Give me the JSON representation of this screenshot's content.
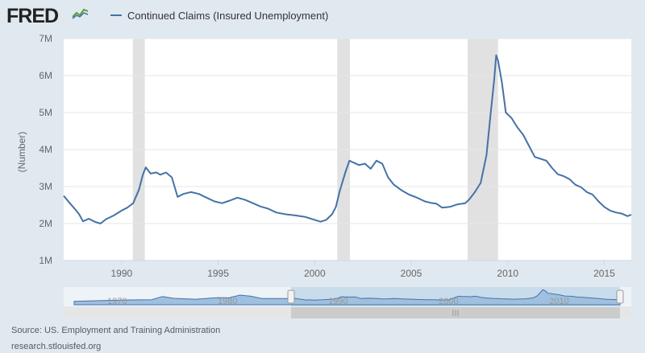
{
  "header": {
    "logo": "FRED",
    "legend_label": "Continued Claims (Insured Unemployment)"
  },
  "footer": {
    "source": "Source: US. Employment and Training Administration",
    "site": "research.stlouisfed.org"
  },
  "colors": {
    "series": "#4572a7",
    "recession": "#e1e1e1",
    "navigator_fill": "#9fc0de",
    "navigator_bg": "#c9dcec"
  },
  "chart_data": {
    "type": "line",
    "title": "",
    "xlabel": "",
    "ylabel": "(Number)",
    "xlim": [
      1987.0,
      2016.4
    ],
    "ylim": [
      1000000,
      7000000
    ],
    "yticks": [
      1000000,
      2000000,
      3000000,
      4000000,
      5000000,
      6000000,
      7000000
    ],
    "ytick_labels": [
      "1M",
      "2M",
      "3M",
      "4M",
      "5M",
      "6M",
      "7M"
    ],
    "xticks": [
      1990,
      1995,
      2000,
      2005,
      2010,
      2015
    ],
    "xtick_labels": [
      "1990",
      "1995",
      "2000",
      "2005",
      "2010",
      "2015"
    ],
    "grid": "horizontal",
    "legend": "top-left",
    "recessions": [
      [
        1990.58,
        1991.2
      ],
      [
        2001.17,
        2001.83
      ],
      [
        2007.92,
        2009.5
      ]
    ],
    "series": [
      {
        "name": "Continued Claims (Insured Unemployment)",
        "x": [
          1987.0,
          1987.3,
          1987.6,
          1987.8,
          1988.0,
          1988.3,
          1988.6,
          1988.9,
          1989.2,
          1989.6,
          1990.0,
          1990.3,
          1990.6,
          1990.9,
          1991.1,
          1991.25,
          1991.5,
          1991.8,
          1992.0,
          1992.3,
          1992.6,
          1992.9,
          1993.2,
          1993.6,
          1994.0,
          1994.4,
          1994.8,
          1995.2,
          1995.6,
          1996.0,
          1996.4,
          1996.8,
          1997.2,
          1997.6,
          1998.0,
          1998.5,
          1999.0,
          1999.5,
          2000.0,
          2000.3,
          2000.6,
          2000.9,
          2001.1,
          2001.3,
          2001.6,
          2001.8,
          2002.0,
          2002.3,
          2002.6,
          2002.9,
          2003.2,
          2003.5,
          2003.8,
          2004.1,
          2004.5,
          2004.9,
          2005.3,
          2005.7,
          2006.0,
          2006.3,
          2006.6,
          2007.0,
          2007.4,
          2007.8,
          2008.0,
          2008.3,
          2008.6,
          2008.9,
          2009.1,
          2009.3,
          2009.4,
          2009.5,
          2009.7,
          2009.9,
          2010.2,
          2010.5,
          2010.8,
          2011.1,
          2011.4,
          2011.7,
          2012.0,
          2012.3,
          2012.6,
          2012.9,
          2013.2,
          2013.5,
          2013.8,
          2014.1,
          2014.4,
          2014.7,
          2015.0,
          2015.3,
          2015.6,
          2015.9,
          2016.2,
          2016.4
        ],
        "values": [
          2750000,
          2560000,
          2380000,
          2250000,
          2060000,
          2130000,
          2050000,
          2000000,
          2120000,
          2220000,
          2350000,
          2430000,
          2550000,
          2920000,
          3320000,
          3520000,
          3350000,
          3380000,
          3320000,
          3380000,
          3250000,
          2720000,
          2800000,
          2850000,
          2800000,
          2700000,
          2600000,
          2550000,
          2620000,
          2700000,
          2640000,
          2550000,
          2460000,
          2400000,
          2300000,
          2250000,
          2220000,
          2180000,
          2100000,
          2050000,
          2100000,
          2250000,
          2450000,
          2880000,
          3400000,
          3700000,
          3650000,
          3580000,
          3620000,
          3480000,
          3700000,
          3620000,
          3250000,
          3050000,
          2900000,
          2780000,
          2700000,
          2600000,
          2560000,
          2540000,
          2430000,
          2450000,
          2520000,
          2550000,
          2650000,
          2850000,
          3100000,
          3850000,
          4900000,
          5900000,
          6550000,
          6400000,
          5800000,
          5000000,
          4850000,
          4600000,
          4400000,
          4100000,
          3800000,
          3750000,
          3700000,
          3500000,
          3330000,
          3280000,
          3200000,
          3050000,
          2980000,
          2850000,
          2780000,
          2600000,
          2450000,
          2350000,
          2300000,
          2270000,
          2200000,
          2240000
        ]
      }
    ],
    "navigator": {
      "xtick_labels": [
        "1970",
        "1980",
        "1990",
        "2000",
        "2010"
      ],
      "scroll_handle": "III"
    }
  }
}
